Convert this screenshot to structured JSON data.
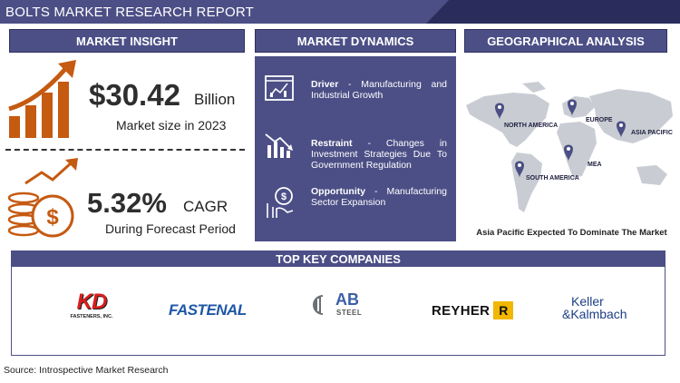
{
  "report": {
    "title": "BOLTS MARKET RESEARCH REPORT"
  },
  "sections": {
    "insight": "MARKET INSIGHT",
    "dynamics": "MARKET DYNAMICS",
    "geo": "GEOGRAPHICAL ANALYSIS"
  },
  "insight": {
    "market_size_value": "$30.42",
    "market_size_unit": "Billion",
    "market_size_caption": "Market size in 2023",
    "cagr_value": "5.32%",
    "cagr_unit": "CAGR",
    "cagr_caption": "During Forecast Period"
  },
  "dynamics": {
    "driver": {
      "label": "Driver",
      "text": " - Manufacturing and Industrial Growth"
    },
    "restraint": {
      "label": "Restraint",
      "text": " - Changes in Investment Strategies Due To Government Regulation"
    },
    "opportunity": {
      "label": "Opportunity",
      "text": " - Manufacturing Sector Expansion"
    }
  },
  "geo": {
    "regions": [
      "NORTH AMERICA",
      "EUROPE",
      "ASIA PACIFIC",
      "MEA",
      "SOUTH AMERICA"
    ],
    "caption": "Asia Pacific Expected To Dominate The Market"
  },
  "companies": {
    "title": "TOP KEY COMPANIES",
    "kd": {
      "mark": "KD",
      "sub": "FASTENERS, INC."
    },
    "fastenal": "FASTENAL",
    "ab": {
      "mark": "AB",
      "sub": "STEEL"
    },
    "reyher": {
      "name": "REYHER",
      "badge": "R"
    },
    "keller": {
      "line1": "Keller",
      "line2": "&Kalmbach"
    }
  },
  "source": "Source: Introspective Market Research",
  "colors": {
    "accent": "#4c4f86",
    "orange": "#c55a11",
    "dark_navy": "#2a2d5c"
  },
  "icons": [
    "growth-chart-icon",
    "dollar-coins-icon",
    "analytics-dashboard-icon",
    "decline-chart-icon",
    "opportunity-hand-icon",
    "map-pin-icon"
  ]
}
